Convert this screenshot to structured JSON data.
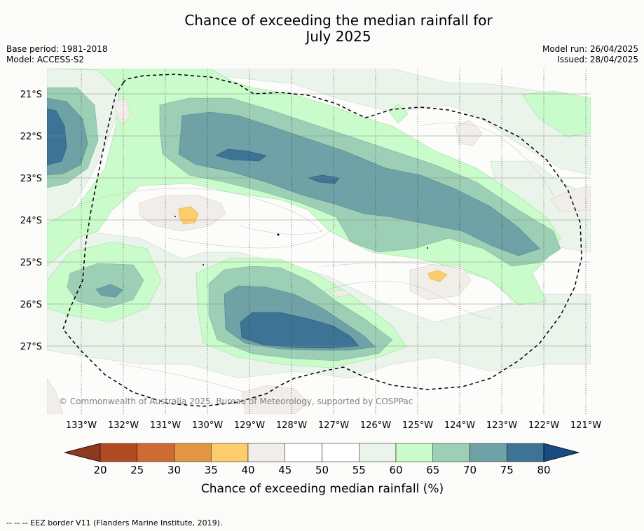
{
  "title_line1": "Chance of exceeding the median rainfall for",
  "title_line2": "July 2025",
  "meta": {
    "base_period": "Base period: 1981-2018",
    "model": "Model: ACCESS-S2",
    "model_run": "Model run: 26/04/2025",
    "issued": "Issued: 28/04/2025"
  },
  "map": {
    "lon_labels": [
      "133°W",
      "132°W",
      "131°W",
      "130°W",
      "129°W",
      "128°W",
      "127°W",
      "126°W",
      "125°W",
      "124°W",
      "123°W",
      "122°W",
      "121°W"
    ],
    "lat_labels": [
      "21°S",
      "22°S",
      "23°S",
      "24°S",
      "25°S",
      "26°S",
      "27°S"
    ],
    "copyright": "© Commonwealth of Australia 2025, Bureau of Meteorology, supported by COSPPac"
  },
  "colorbar": {
    "ticks": [
      "20",
      "25",
      "30",
      "35",
      "40",
      "45",
      "50",
      "55",
      "60",
      "65",
      "70",
      "75",
      "80"
    ],
    "label": "Chance of exceeding median rainfall (%)",
    "colors": [
      "#8e3a1e",
      "#b14a22",
      "#d06a35",
      "#e39542",
      "#fecd6b",
      "#f1ede8",
      "#ffffff",
      "#ffffff",
      "#ebf4ea",
      "#c9fcca",
      "#9ccfb5",
      "#6ea2a7",
      "#3d7395",
      "#1a4a82"
    ]
  },
  "footer": "--  --  -- EEZ border V11 (Flanders Marine Institute, 2019)."
}
